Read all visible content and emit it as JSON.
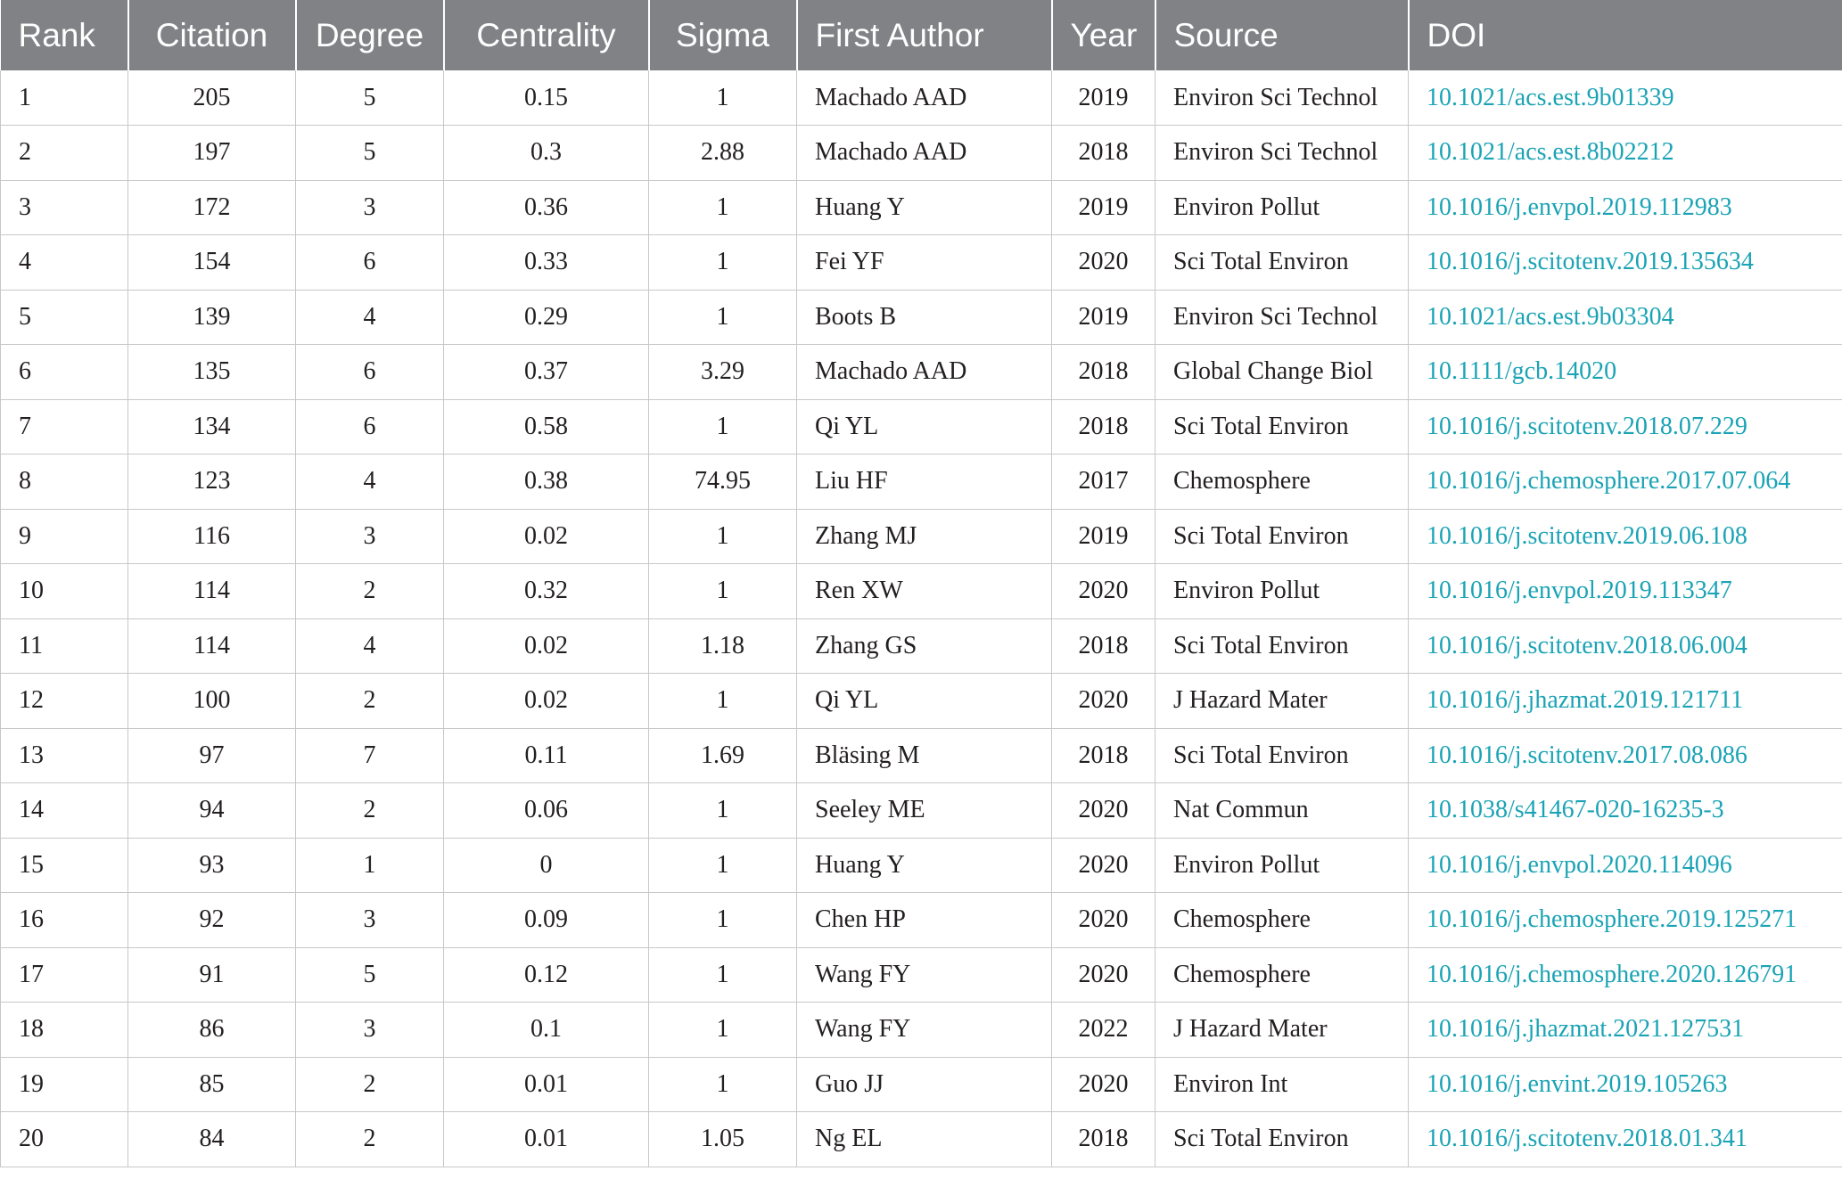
{
  "table": {
    "headers": [
      "Rank",
      "Citation",
      "Degree",
      "Centrality",
      "Sigma",
      "First Author",
      "Year",
      "Source",
      "DOI"
    ],
    "rows": [
      [
        "1",
        "205",
        "5",
        "0.15",
        "1",
        "Machado AAD",
        "2019",
        "Environ Sci Technol",
        "10.1021/acs.est.9b01339"
      ],
      [
        "2",
        "197",
        "5",
        "0.3",
        "2.88",
        "Machado AAD",
        "2018",
        "Environ Sci Technol",
        "10.1021/acs.est.8b02212"
      ],
      [
        "3",
        "172",
        "3",
        "0.36",
        "1",
        "Huang Y",
        "2019",
        "Environ Pollut",
        "10.1016/j.envpol.2019.112983"
      ],
      [
        "4",
        "154",
        "6",
        "0.33",
        "1",
        "Fei YF",
        "2020",
        "Sci Total Environ",
        "10.1016/j.scitotenv.2019.135634"
      ],
      [
        "5",
        "139",
        "4",
        "0.29",
        "1",
        "Boots B",
        "2019",
        "Environ Sci Technol",
        "10.1021/acs.est.9b03304"
      ],
      [
        "6",
        "135",
        "6",
        "0.37",
        "3.29",
        "Machado AAD",
        "2018",
        "Global Change Biol",
        "10.1111/gcb.14020"
      ],
      [
        "7",
        "134",
        "6",
        "0.58",
        "1",
        "Qi YL",
        "2018",
        "Sci Total Environ",
        "10.1016/j.scitotenv.2018.07.229"
      ],
      [
        "8",
        "123",
        "4",
        "0.38",
        "74.95",
        "Liu HF",
        "2017",
        "Chemosphere",
        "10.1016/j.chemosphere.2017.07.064"
      ],
      [
        "9",
        "116",
        "3",
        "0.02",
        "1",
        "Zhang MJ",
        "2019",
        "Sci Total Environ",
        "10.1016/j.scitotenv.2019.06.108"
      ],
      [
        "10",
        "114",
        "2",
        "0.32",
        "1",
        "Ren XW",
        "2020",
        "Environ Pollut",
        "10.1016/j.envpol.2019.113347"
      ],
      [
        "11",
        "114",
        "4",
        "0.02",
        "1.18",
        "Zhang GS",
        "2018",
        "Sci Total Environ",
        "10.1016/j.scitotenv.2018.06.004"
      ],
      [
        "12",
        "100",
        "2",
        "0.02",
        "1",
        "Qi YL",
        "2020",
        "J Hazard Mater",
        "10.1016/j.jhazmat.2019.121711"
      ],
      [
        "13",
        "97",
        "7",
        "0.11",
        "1.69",
        "Bläsing M",
        "2018",
        "Sci Total Environ",
        "10.1016/j.scitotenv.2017.08.086"
      ],
      [
        "14",
        "94",
        "2",
        "0.06",
        "1",
        "Seeley ME",
        "2020",
        "Nat Commun",
        "10.1038/s41467-020-16235-3"
      ],
      [
        "15",
        "93",
        "1",
        "0",
        "1",
        "Huang Y",
        "2020",
        "Environ Pollut",
        "10.1016/j.envpol.2020.114096"
      ],
      [
        "16",
        "92",
        "3",
        "0.09",
        "1",
        "Chen HP",
        "2020",
        "Chemosphere",
        "10.1016/j.chemosphere.2019.125271"
      ],
      [
        "17",
        "91",
        "5",
        "0.12",
        "1",
        "Wang FY",
        "2020",
        "Chemosphere",
        "10.1016/j.chemosphere.2020.126791"
      ],
      [
        "18",
        "86",
        "3",
        "0.1",
        "1",
        "Wang FY",
        "2022",
        "J Hazard Mater",
        "10.1016/j.jhazmat.2021.127531"
      ],
      [
        "19",
        "85",
        "2",
        "0.01",
        "1",
        "Guo JJ",
        "2020",
        "Environ Int",
        "10.1016/j.envint.2019.105263"
      ],
      [
        "20",
        "84",
        "2",
        "0.01",
        "1.05",
        "Ng EL",
        "2018",
        "Sci Total Environ",
        "10.1016/j.scitotenv.2018.01.341"
      ]
    ]
  },
  "chart_data": {
    "type": "table",
    "columns": [
      "Rank",
      "Citation",
      "Degree",
      "Centrality",
      "Sigma",
      "First Author",
      "Year",
      "Source",
      "DOI"
    ],
    "rows": [
      [
        1,
        205,
        5,
        0.15,
        1,
        "Machado AAD",
        2019,
        "Environ Sci Technol",
        "10.1021/acs.est.9b01339"
      ],
      [
        2,
        197,
        5,
        0.3,
        2.88,
        "Machado AAD",
        2018,
        "Environ Sci Technol",
        "10.1021/acs.est.8b02212"
      ],
      [
        3,
        172,
        3,
        0.36,
        1,
        "Huang Y",
        2019,
        "Environ Pollut",
        "10.1016/j.envpol.2019.112983"
      ],
      [
        4,
        154,
        6,
        0.33,
        1,
        "Fei YF",
        2020,
        "Sci Total Environ",
        "10.1016/j.scitotenv.2019.135634"
      ],
      [
        5,
        139,
        4,
        0.29,
        1,
        "Boots B",
        2019,
        "Environ Sci Technol",
        "10.1021/acs.est.9b03304"
      ],
      [
        6,
        135,
        6,
        0.37,
        3.29,
        "Machado AAD",
        2018,
        "Global Change Biol",
        "10.1111/gcb.14020"
      ],
      [
        7,
        134,
        6,
        0.58,
        1,
        "Qi YL",
        2018,
        "Sci Total Environ",
        "10.1016/j.scitotenv.2018.07.229"
      ],
      [
        8,
        123,
        4,
        0.38,
        74.95,
        "Liu HF",
        2017,
        "Chemosphere",
        "10.1016/j.chemosphere.2017.07.064"
      ],
      [
        9,
        116,
        3,
        0.02,
        1,
        "Zhang MJ",
        2019,
        "Sci Total Environ",
        "10.1016/j.scitotenv.2019.06.108"
      ],
      [
        10,
        114,
        2,
        0.32,
        1,
        "Ren XW",
        2020,
        "Environ Pollut",
        "10.1016/j.envpol.2019.113347"
      ],
      [
        11,
        114,
        4,
        0.02,
        1.18,
        "Zhang GS",
        2018,
        "Sci Total Environ",
        "10.1016/j.scitotenv.2018.06.004"
      ],
      [
        12,
        100,
        2,
        0.02,
        1,
        "Qi YL",
        2020,
        "J Hazard Mater",
        "10.1016/j.jhazmat.2019.121711"
      ],
      [
        13,
        97,
        7,
        0.11,
        1.69,
        "Bläsing M",
        2018,
        "Sci Total Environ",
        "10.1016/j.scitotenv.2017.08.086"
      ],
      [
        14,
        94,
        2,
        0.06,
        1,
        "Seeley ME",
        2020,
        "Nat Commun",
        "10.1038/s41467-020-16235-3"
      ],
      [
        15,
        93,
        1,
        0,
        1,
        "Huang Y",
        2020,
        "Environ Pollut",
        "10.1016/j.envpol.2020.114096"
      ],
      [
        16,
        92,
        3,
        0.09,
        1,
        "Chen HP",
        2020,
        "Chemosphere",
        "10.1016/j.chemosphere.2019.125271"
      ],
      [
        17,
        91,
        5,
        0.12,
        1,
        "Wang FY",
        2020,
        "Chemosphere",
        "10.1016/j.chemosphere.2020.126791"
      ],
      [
        18,
        86,
        3,
        0.1,
        1,
        "Wang FY",
        2022,
        "J Hazard Mater",
        "10.1016/j.jhazmat.2021.127531"
      ],
      [
        19,
        85,
        2,
        0.01,
        1,
        "Guo JJ",
        2020,
        "Environ Int",
        "10.1016/j.envint.2019.105263"
      ],
      [
        20,
        84,
        2,
        0.01,
        1.05,
        "Ng EL",
        2018,
        "Sci Total Environ",
        "10.1016/j.scitotenv.2018.01.341"
      ]
    ]
  },
  "colors": {
    "header_bg": "#808285",
    "header_text": "#ffffff",
    "body_text": "#231f20",
    "doi_link": "#1aa3b5",
    "grid_line": "#c8c8c8"
  }
}
